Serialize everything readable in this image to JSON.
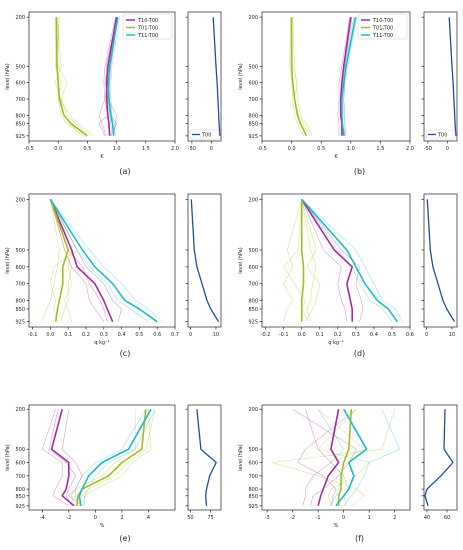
{
  "colors": {
    "T10_T00": "#a8299a",
    "T01_T00": "#a9ba1e",
    "T11_T00": "#1cbcc4",
    "T00": "#1d4f9c",
    "axis": "#222222"
  },
  "chart_data": [
    {
      "type": "line",
      "panel_label": "(a)",
      "title": "",
      "xlabel": "K",
      "ylabel": "level (hPa)",
      "y_levels": [
        200,
        500,
        600,
        700,
        800,
        850,
        925
      ],
      "yticks": [
        200,
        500,
        600,
        700,
        800,
        850,
        925
      ],
      "xlim": [
        -0.5,
        2.0
      ],
      "xticks": [
        "-0.5",
        "0.0",
        "0.5",
        "1.0",
        "1.5",
        "2.0"
      ],
      "legend": "top-right",
      "series": [
        {
          "name": "T10-T00",
          "values": [
            1.0,
            0.85,
            0.83,
            0.83,
            0.85,
            0.87,
            0.88
          ]
        },
        {
          "name": "T01-T00",
          "values": [
            -0.03,
            -0.02,
            0.0,
            0.02,
            0.1,
            0.22,
            0.5
          ]
        },
        {
          "name": "T11-T00",
          "values": [
            1.02,
            0.88,
            0.86,
            0.87,
            0.9,
            0.93,
            0.95
          ]
        }
      ],
      "members": {
        "T10-T00": [
          [
            0.98,
            0.8,
            0.78,
            0.8,
            0.7,
            0.75,
            0.82
          ],
          [
            1.02,
            0.9,
            0.88,
            0.85,
            1.0,
            0.98,
            0.95
          ],
          [
            1.0,
            0.82,
            0.85,
            0.8,
            0.85,
            0.7,
            0.8
          ],
          [
            0.99,
            0.86,
            0.8,
            0.88,
            0.9,
            1.0,
            0.9
          ]
        ],
        "T01-T00": [
          [
            -0.05,
            -0.05,
            0.05,
            0.0,
            0.05,
            0.15,
            0.45
          ],
          [
            0.0,
            0.0,
            0.15,
            0.05,
            0.15,
            0.3,
            0.55
          ],
          [
            -0.02,
            0.05,
            -0.05,
            0.05,
            0.1,
            0.2,
            0.4
          ],
          [
            0.02,
            -0.03,
            0.0,
            0.03,
            0.2,
            0.35,
            0.6
          ]
        ],
        "T11-T00": [
          [
            1.0,
            0.85,
            0.82,
            0.85,
            0.88,
            0.9,
            0.92
          ],
          [
            1.05,
            0.92,
            0.9,
            0.9,
            0.92,
            0.96,
            0.98
          ]
        ]
      },
      "side": {
        "series_name": "T00",
        "values": [
          5,
          12,
          15,
          17,
          19,
          20,
          22
        ],
        "xlim": [
          -60,
          25
        ],
        "xticks": [
          "-50",
          "0"
        ],
        "legend": "bottom-right"
      }
    },
    {
      "type": "line",
      "panel_label": "(b)",
      "title": "",
      "xlabel": "K",
      "ylabel": "level (hPa)",
      "y_levels": [
        200,
        500,
        600,
        700,
        800,
        850,
        925
      ],
      "yticks": [
        200,
        500,
        600,
        700,
        800,
        850,
        925
      ],
      "xlim": [
        -0.5,
        2.0
      ],
      "xticks": [
        "-0.5",
        "0.0",
        "0.5",
        "1.0",
        "1.5",
        "2.0"
      ],
      "legend": "top-right",
      "series": [
        {
          "name": "T10-T00",
          "values": [
            1.0,
            0.88,
            0.85,
            0.83,
            0.83,
            0.85,
            0.85
          ]
        },
        {
          "name": "T01-T00",
          "values": [
            0.0,
            0.0,
            0.02,
            0.05,
            0.1,
            0.15,
            0.25
          ]
        },
        {
          "name": "T11-T00",
          "values": [
            1.08,
            0.92,
            0.88,
            0.85,
            0.85,
            0.86,
            0.88
          ]
        }
      ],
      "members": {
        "T10-T00": [
          [
            0.98,
            0.85,
            0.8,
            0.8,
            0.78,
            0.8,
            0.8
          ],
          [
            1.02,
            0.9,
            0.9,
            0.88,
            0.9,
            0.9,
            0.9
          ]
        ],
        "T01-T00": [
          [
            -0.02,
            -0.03,
            0.0,
            0.02,
            0.05,
            0.1,
            0.2
          ],
          [
            0.02,
            0.05,
            0.08,
            0.1,
            0.15,
            0.2,
            0.3
          ],
          [
            0.0,
            0.02,
            0.1,
            0.05,
            0.12,
            0.25,
            0.35
          ]
        ],
        "T11-T00": [
          [
            1.05,
            0.9,
            0.86,
            0.84,
            0.84,
            0.86,
            0.9
          ],
          [
            1.1,
            0.95,
            0.9,
            0.88,
            0.88,
            0.9,
            0.92
          ]
        ]
      },
      "side": {
        "series_name": "T00",
        "values": [
          5,
          12,
          15,
          17,
          19,
          20,
          22
        ],
        "xlim": [
          -60,
          25
        ],
        "xticks": [
          "-50",
          "0"
        ],
        "legend": "bottom-right"
      }
    },
    {
      "type": "line",
      "panel_label": "(c)",
      "title": "",
      "xlabel": "q kg⁻¹",
      "ylabel": "level (hPa)",
      "y_levels": [
        200,
        500,
        600,
        700,
        800,
        850,
        925
      ],
      "yticks": [
        200,
        500,
        600,
        700,
        800,
        850,
        925
      ],
      "xlim": [
        -0.12,
        0.7
      ],
      "xticks": [
        "-0.1",
        "0.0",
        "0.1",
        "0.2",
        "0.3",
        "0.4",
        "0.5",
        "0.6",
        "0.7"
      ],
      "series": [
        {
          "name": "T10-T00",
          "values": [
            0.0,
            0.12,
            0.15,
            0.25,
            0.3,
            0.32,
            0.35
          ]
        },
        {
          "name": "T01-T00",
          "values": [
            0.0,
            0.1,
            0.07,
            0.07,
            0.05,
            0.04,
            0.03
          ]
        },
        {
          "name": "T11-T00",
          "values": [
            0.0,
            0.18,
            0.25,
            0.35,
            0.42,
            0.5,
            0.6
          ]
        }
      ],
      "members": {
        "T10-T00": [
          [
            0.0,
            0.08,
            0.12,
            0.2,
            0.22,
            0.25,
            0.3
          ],
          [
            0.0,
            0.15,
            0.2,
            0.3,
            0.35,
            0.4,
            0.38
          ],
          [
            0.0,
            0.1,
            0.18,
            0.22,
            0.28,
            0.3,
            0.32
          ]
        ],
        "T01-T00": [
          [
            0.0,
            0.05,
            0.04,
            0.02,
            0.0,
            -0.02,
            -0.05
          ],
          [
            0.0,
            0.12,
            0.1,
            0.12,
            0.08,
            0.1,
            0.12
          ],
          [
            0.0,
            0.15,
            0.02,
            0.0,
            0.03,
            0.02,
            0.04
          ],
          [
            0.0,
            0.08,
            0.12,
            0.1,
            0.1,
            0.08,
            0.06
          ]
        ],
        "T11-T00": [
          [
            0.0,
            0.15,
            0.22,
            0.32,
            0.38,
            0.45,
            0.55
          ],
          [
            0.0,
            0.22,
            0.3,
            0.4,
            0.48,
            0.55,
            0.63
          ]
        ]
      },
      "side": {
        "series_name": "",
        "values": [
          0.3,
          1.5,
          2.5,
          4.5,
          6.5,
          8.0,
          11.0
        ],
        "xlim": [
          -1,
          12
        ],
        "xticks": [
          "0",
          "10"
        ],
        "legend": "none"
      }
    },
    {
      "type": "line",
      "panel_label": "(d)",
      "title": "",
      "xlabel": "q kg⁻¹",
      "ylabel": "level (hPa)",
      "y_levels": [
        200,
        500,
        600,
        700,
        800,
        850,
        925
      ],
      "yticks": [
        200,
        500,
        600,
        700,
        800,
        850,
        925
      ],
      "xlim": [
        -0.22,
        0.6
      ],
      "xticks": [
        "-0.2",
        "-0.1",
        "0.0",
        "0.1",
        "0.2",
        "0.3",
        "0.4",
        "0.5",
        "0.6"
      ],
      "series": [
        {
          "name": "T10-T00",
          "values": [
            0.0,
            0.18,
            0.28,
            0.25,
            0.27,
            0.28,
            0.28
          ]
        },
        {
          "name": "T01-T00",
          "values": [
            0.0,
            0.0,
            0.01,
            0.01,
            0.0,
            0.0,
            0.0
          ]
        },
        {
          "name": "T11-T00",
          "values": [
            0.0,
            0.25,
            0.3,
            0.35,
            0.42,
            0.48,
            0.53
          ]
        }
      ],
      "members": {
        "T10-T00": [
          [
            0.0,
            0.12,
            0.22,
            0.2,
            0.22,
            0.24,
            0.25
          ],
          [
            0.0,
            0.22,
            0.32,
            0.3,
            0.33,
            0.34,
            0.32
          ]
        ],
        "T01-T00": [
          [
            0.0,
            -0.08,
            -0.05,
            -0.1,
            -0.05,
            -0.08,
            -0.1
          ],
          [
            0.0,
            0.05,
            0.08,
            0.06,
            0.05,
            0.03,
            0.05
          ],
          [
            0.0,
            -0.02,
            -0.1,
            -0.04,
            0.02,
            0.0,
            0.04
          ],
          [
            0.0,
            0.08,
            0.03,
            0.1,
            0.08,
            0.06,
            0.02
          ]
        ],
        "T11-T00": [
          [
            0.0,
            0.2,
            0.28,
            0.32,
            0.38,
            0.45,
            0.5
          ],
          [
            0.0,
            0.3,
            0.35,
            0.4,
            0.45,
            0.52,
            0.56
          ]
        ]
      },
      "side": {
        "series_name": "",
        "values": [
          0.3,
          1.5,
          2.5,
          4.5,
          6.5,
          8.0,
          11.0
        ],
        "xlim": [
          -1,
          12
        ],
        "xticks": [
          "0",
          "10"
        ],
        "legend": "none"
      }
    },
    {
      "type": "line",
      "panel_label": "(e)",
      "title": "",
      "xlabel": "%",
      "ylabel": "level (hPa)",
      "y_levels": [
        200,
        500,
        600,
        700,
        800,
        850,
        925
      ],
      "yticks": [
        200,
        500,
        600,
        700,
        800,
        850,
        925
      ],
      "xlim": [
        -5,
        6
      ],
      "xticks": [
        "-4",
        "-2",
        "0",
        "2",
        "4"
      ],
      "series": [
        {
          "name": "T10-T00",
          "values": [
            -2.5,
            -3.3,
            -2.0,
            -2.0,
            -2.2,
            -2.5,
            -1.6
          ]
        },
        {
          "name": "T01-T00",
          "values": [
            3.8,
            3.5,
            2.0,
            1.0,
            -1.0,
            -1.3,
            -1.4
          ]
        },
        {
          "name": "T11-T00",
          "values": [
            4.2,
            2.5,
            0.5,
            -0.5,
            -1.0,
            -1.2,
            -1.1
          ]
        }
      ],
      "members": {
        "T10-T00": [
          [
            -3.0,
            -4.0,
            -2.5,
            -2.5,
            -3.0,
            -3.2,
            -2.0
          ],
          [
            -2.0,
            -2.5,
            -1.5,
            -1.0,
            -1.5,
            -2.0,
            -1.0
          ],
          [
            -2.8,
            -3.5,
            -2.2,
            -1.5,
            -2.0,
            -2.2,
            -1.8
          ]
        ],
        "T01-T00": [
          [
            4.5,
            3.8,
            2.5,
            1.5,
            -0.5,
            -1.0,
            -1.2
          ],
          [
            3.0,
            3.0,
            1.5,
            0.5,
            -1.5,
            -1.8,
            -1.6
          ],
          [
            4.0,
            4.2,
            2.8,
            2.0,
            0.0,
            -0.8,
            -1.0
          ]
        ],
        "T11-T00": [
          [
            4.5,
            3.0,
            1.0,
            0.0,
            -0.5,
            -0.8,
            -0.8
          ],
          [
            3.8,
            2.0,
            0.0,
            -1.0,
            -1.5,
            -1.5,
            -1.3
          ]
        ]
      },
      "side": {
        "series_name": "",
        "values": [
          58,
          63,
          82,
          74,
          70,
          69,
          70
        ],
        "xlim": [
          47,
          88
        ],
        "xticks": [
          "50",
          "75"
        ],
        "legend": "none"
      }
    },
    {
      "type": "line",
      "panel_label": "(f)",
      "title": "",
      "xlabel": "%",
      "ylabel": "level (hPa)",
      "y_levels": [
        200,
        500,
        600,
        700,
        800,
        850,
        925
      ],
      "yticks": [
        200,
        500,
        600,
        700,
        800,
        850,
        925
      ],
      "xlim": [
        -3.2,
        2.6
      ],
      "xticks": [
        "-3",
        "-2",
        "-1",
        "0",
        "1",
        "2"
      ],
      "series": [
        {
          "name": "T10-T00",
          "values": [
            -0.2,
            -0.5,
            -0.2,
            -0.6,
            -0.8,
            -0.9,
            -1.0
          ]
        },
        {
          "name": "T01-T00",
          "values": [
            0.3,
            0.2,
            0.0,
            -0.1,
            -0.1,
            -0.2,
            -0.2
          ]
        },
        {
          "name": "T11-T00",
          "values": [
            0.0,
            0.9,
            0.2,
            0.4,
            0.2,
            0.0,
            -0.3
          ]
        }
      ],
      "members": {
        "T10-T00": [
          [
            -1.5,
            -1.0,
            -0.5,
            -1.2,
            -1.5,
            -1.5,
            -1.6
          ],
          [
            0.5,
            -1.5,
            -1.8,
            -0.8,
            -0.3,
            -0.4,
            -0.5
          ],
          [
            -2.0,
            0.5,
            0.2,
            -0.2,
            -0.8,
            -1.2,
            -1.3
          ]
        ],
        "T01-T00": [
          [
            2.0,
            1.5,
            -2.8,
            -1.0,
            0.5,
            0.8,
            0.3
          ],
          [
            0.5,
            -1.0,
            1.0,
            0.5,
            -0.5,
            -0.6,
            -0.5
          ],
          [
            -1.0,
            0.8,
            -0.5,
            0.0,
            0.2,
            0.0,
            0.1
          ]
        ],
        "T11-T00": [
          [
            1.5,
            2.2,
            1.0,
            0.8,
            0.5,
            0.3,
            0.0
          ],
          [
            -1.0,
            0.0,
            -0.5,
            0.0,
            -0.2,
            -0.3,
            -0.5
          ]
        ]
      },
      "side": {
        "series_name": "",
        "values": [
          58,
          57,
          66,
          54,
          40,
          38,
          41
        ],
        "xlim": [
          37,
          70
        ],
        "xticks": [
          "40",
          "60"
        ],
        "legend": "none"
      }
    }
  ]
}
